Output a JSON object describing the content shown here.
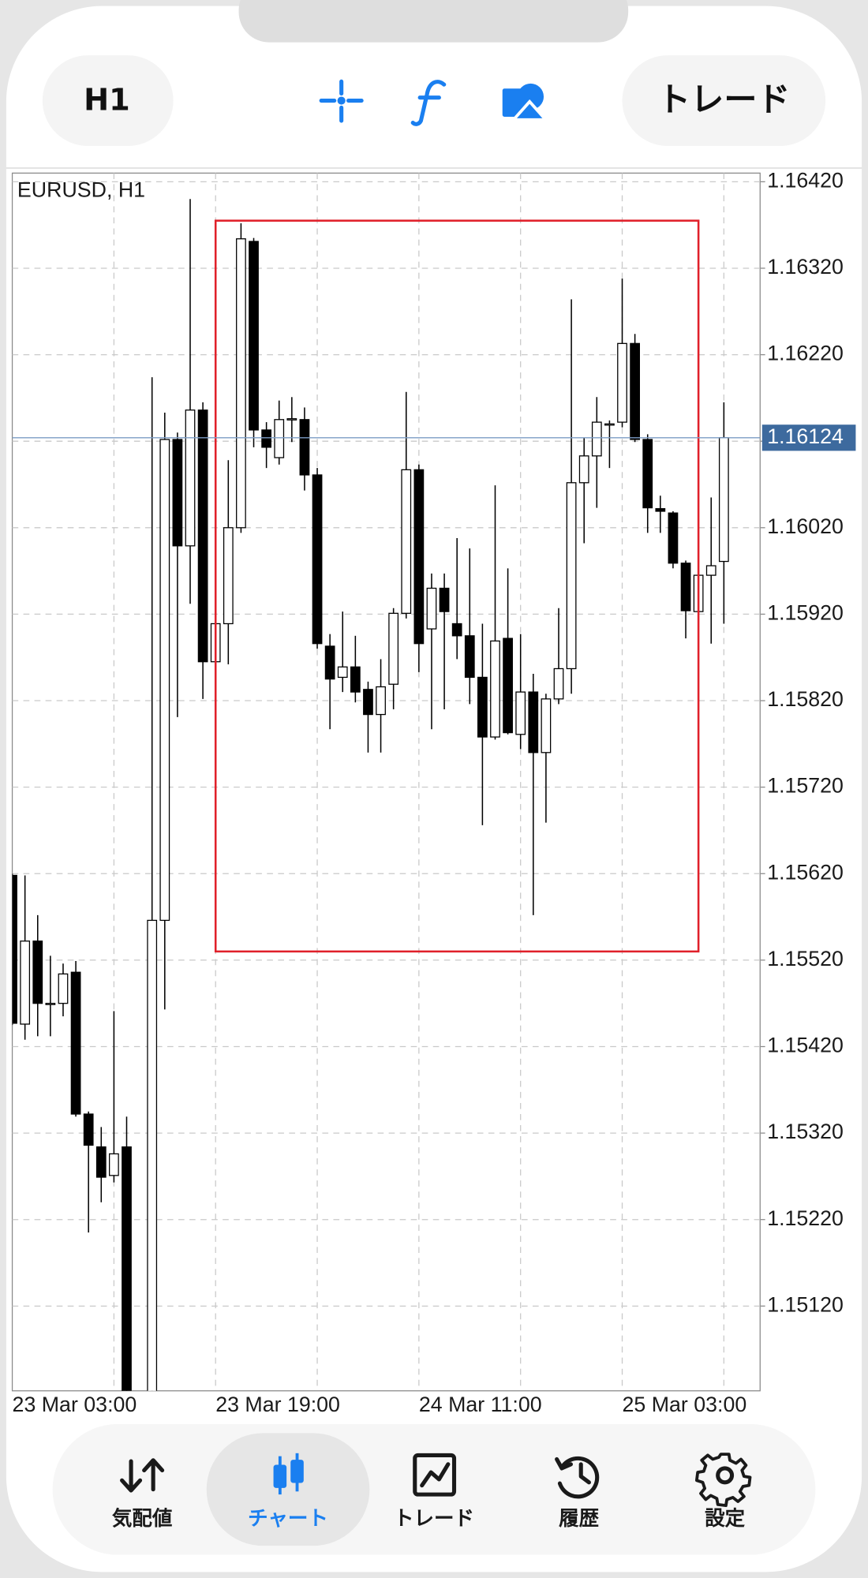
{
  "toolbar": {
    "timeframe": "H1",
    "trade_button": "トレード"
  },
  "chart_data": {
    "type": "candlestick",
    "title": "EURUSD, H1",
    "categories": [
      "23 Mar 03:00",
      null,
      null,
      null,
      null,
      null,
      null,
      null,
      null,
      null,
      null,
      null,
      null,
      null,
      null,
      null,
      "23 Mar 19:00",
      null,
      null,
      null,
      null,
      null,
      null,
      null,
      null,
      null,
      null,
      null,
      null,
      null,
      null,
      null,
      "24 Mar 11:00",
      null,
      null,
      null,
      null,
      null,
      null,
      null,
      null,
      null,
      null,
      null,
      null,
      null,
      null,
      null,
      "25 Mar 03:00",
      null,
      null,
      null,
      null,
      null,
      null,
      null,
      null
    ],
    "open": [
      1.15618,
      1.15446,
      1.15542,
      1.1547,
      1.1547,
      1.15506,
      1.15342,
      1.15304,
      1.15271,
      1.15304,
      null,
      1.15,
      1.15566,
      1.16122,
      1.15999,
      1.16156,
      1.15865,
      1.15909,
      1.1602,
      1.16351,
      1.16133,
      1.16101,
      1.16145,
      1.16145,
      1.16081,
      1.15883,
      1.15847,
      1.15859,
      1.15833,
      1.15804,
      1.15839,
      1.15921,
      1.16087,
      1.15903,
      1.1595,
      1.15909,
      1.15895,
      1.15847,
      1.15778,
      1.15892,
      1.15781,
      1.1583,
      1.1576,
      1.15822,
      1.15857,
      1.16072,
      1.16103,
      1.1614,
      1.16142,
      1.16233,
      1.16122,
      1.16042,
      1.16037,
      1.15979,
      1.15923,
      1.15965,
      1.15981
    ],
    "high": [
      1.1562,
      1.15618,
      1.15572,
      1.15525,
      1.15516,
      1.15519,
      1.15345,
      1.15327,
      1.15461,
      1.15339,
      null,
      1.16194,
      1.16153,
      1.1613,
      1.164,
      1.16165,
      1.15915,
      1.16098,
      1.16372,
      1.16355,
      1.16142,
      1.16167,
      1.16171,
      1.16159,
      1.16089,
      1.15897,
      1.15923,
      1.15895,
      1.15842,
      1.15868,
      1.15927,
      1.16177,
      1.16093,
      1.15967,
      1.15967,
      1.16008,
      1.15996,
      1.15909,
      1.16069,
      1.15973,
      1.15897,
      1.15851,
      1.15828,
      1.15927,
      1.16284,
      1.16124,
      1.16171,
      1.16144,
      1.16308,
      1.16244,
      1.16128,
      1.16057,
      1.16039,
      1.15982,
      1.15979,
      1.16055,
      1.16165
    ],
    "low": [
      1.15445,
      1.15428,
      1.15432,
      1.15432,
      1.15455,
      1.15339,
      1.15205,
      1.1524,
      1.15263,
      1.1495,
      null,
      1.1498,
      1.15463,
      1.15801,
      1.15932,
      1.15822,
      1.15857,
      1.15862,
      1.16014,
      1.16113,
      1.16089,
      1.16093,
      1.16119,
      1.16063,
      1.1588,
      1.15787,
      1.1583,
      1.15818,
      1.1576,
      1.1576,
      1.1581,
      1.15915,
      1.15853,
      1.15787,
      1.1581,
      1.15868,
      1.15816,
      1.15676,
      1.15775,
      1.15781,
      1.15764,
      1.15572,
      1.15679,
      1.15816,
      1.15828,
      1.16002,
      1.16043,
      1.16089,
      1.16136,
      1.16119,
      1.16014,
      1.16014,
      1.15973,
      1.15892,
      1.15921,
      1.15886,
      1.15909
    ],
    "close": [
      1.15447,
      1.15542,
      1.1547,
      1.1547,
      1.15504,
      1.15342,
      1.15306,
      1.15269,
      1.15296,
      1.1498,
      null,
      1.15566,
      1.16122,
      1.15999,
      1.16156,
      1.15865,
      1.15909,
      1.1602,
      1.16354,
      1.16133,
      1.16113,
      1.16145,
      1.16146,
      1.16081,
      1.15886,
      1.15845,
      1.15859,
      1.1583,
      1.15804,
      1.15836,
      1.15921,
      1.16087,
      1.15886,
      1.1595,
      1.15923,
      1.15895,
      1.15847,
      1.15778,
      1.15889,
      1.15783,
      1.1583,
      1.1576,
      1.15822,
      1.15857,
      1.16072,
      1.16103,
      1.16142,
      1.1614,
      1.16233,
      1.16122,
      1.16043,
      1.16039,
      1.15979,
      1.15924,
      1.15965,
      1.15976,
      1.16124
    ],
    "up_color": "#ffffff",
    "down_color": "#000000",
    "wick_color": "#000000",
    "ylim": [
      1.15022,
      1.1643
    ],
    "yticks": [
      {
        "value": 1.1642,
        "label": "1.16420"
      },
      {
        "value": 1.1632,
        "label": "1.16320"
      },
      {
        "value": 1.1622,
        "label": "1.16220"
      },
      {
        "value": 1.1612,
        "label": "1.16120"
      },
      {
        "value": 1.1602,
        "label": "1.16020"
      },
      {
        "value": 1.1592,
        "label": "1.15920"
      },
      {
        "value": 1.1582,
        "label": "1.15820"
      },
      {
        "value": 1.1572,
        "label": "1.15720"
      },
      {
        "value": 1.1562,
        "label": "1.15620"
      },
      {
        "value": 1.1552,
        "label": "1.15520"
      },
      {
        "value": 1.1542,
        "label": "1.15420"
      },
      {
        "value": 1.1532,
        "label": "1.15320"
      },
      {
        "value": 1.1522,
        "label": "1.15220"
      },
      {
        "value": 1.1512,
        "label": "1.15120"
      }
    ],
    "current_price": 1.16124,
    "current_price_color": "#3d6a9e",
    "highlight": {
      "high": 1.16375,
      "low": 1.1553,
      "color": "#e0202a"
    },
    "grid": true
  },
  "nav": {
    "items": [
      "気配値",
      "チャート",
      "トレード",
      "履歴",
      "設定"
    ],
    "active": 1,
    "active_color": "#1a7ff0"
  }
}
